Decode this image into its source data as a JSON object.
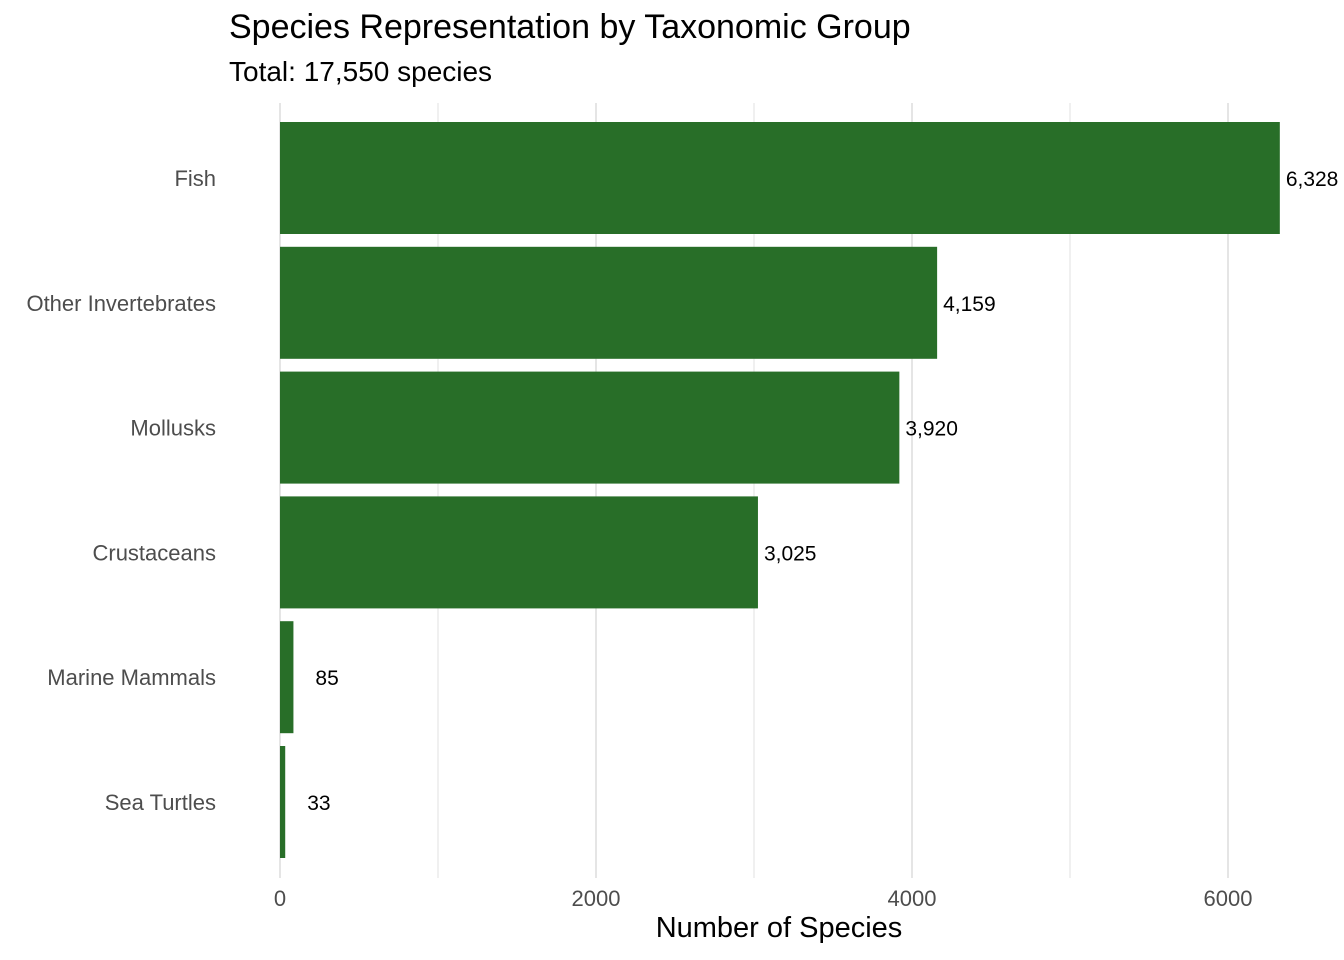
{
  "chart_data": {
    "type": "bar",
    "orientation": "horizontal",
    "title": "Species Representation by Taxonomic Group",
    "subtitle": "Total: 17,550 species",
    "xlabel": "Number of Species",
    "ylabel": "",
    "categories": [
      "Fish",
      "Other Invertebrates",
      "Mollusks",
      "Crustaceans",
      "Marine Mammals",
      "Sea Turtles"
    ],
    "values": [
      6328,
      4159,
      3920,
      3025,
      85,
      33
    ],
    "data_labels": [
      "6,328",
      "4,159",
      "3,920",
      "3,025",
      "85",
      "33"
    ],
    "xticks": [
      0,
      2000,
      4000,
      6000
    ],
    "xlim": [
      0,
      6640
    ],
    "grid": true,
    "legend": "none",
    "colors": {
      "bar": "#286E28",
      "grid": "#e5e5e5"
    }
  }
}
